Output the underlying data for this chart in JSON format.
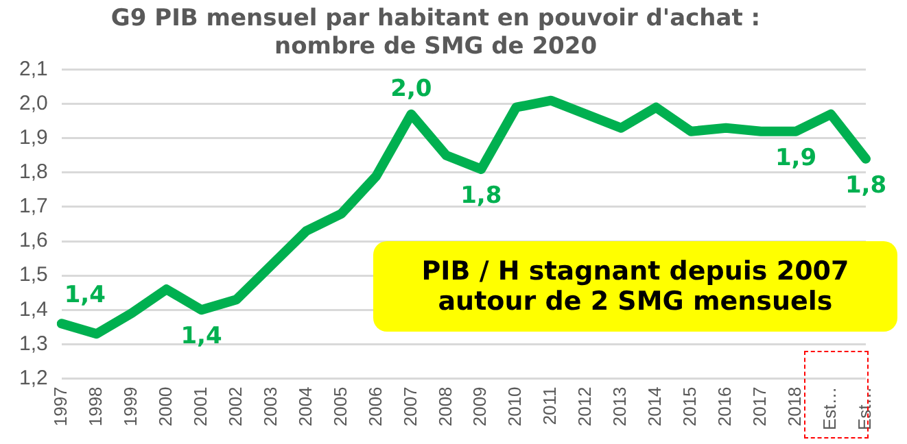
{
  "chart_data": {
    "type": "line",
    "title": "G9 PIB mensuel par habitant en pouvoir d'achat :\nnombre de SMG de 2020",
    "categories": [
      "1997",
      "1998",
      "1999",
      "2000",
      "2001",
      "2002",
      "2003",
      "2004",
      "2005",
      "2006",
      "2007",
      "2008",
      "2009",
      "2010",
      "2011",
      "2012",
      "2013",
      "2014",
      "2015",
      "2016",
      "2017",
      "2018",
      "Est…",
      "Est…"
    ],
    "series": [
      {
        "color": "#00b050",
        "values": [
          1.36,
          1.33,
          1.39,
          1.46,
          1.4,
          1.43,
          1.53,
          1.63,
          1.68,
          1.79,
          1.97,
          1.85,
          1.81,
          1.99,
          2.01,
          1.97,
          1.93,
          1.99,
          1.92,
          1.93,
          1.92,
          1.92,
          1.97,
          1.84
        ],
        "value_labels": [
          "1,4",
          null,
          null,
          null,
          "1,4",
          null,
          null,
          null,
          null,
          null,
          "2,0",
          null,
          "1,8",
          null,
          null,
          null,
          null,
          null,
          null,
          null,
          null,
          "1,9",
          null,
          "1,8"
        ]
      }
    ],
    "ylim": [
      1.2,
      2.1
    ],
    "yticks": [
      {
        "value": 1.2,
        "label": "1,2"
      },
      {
        "value": 1.3,
        "label": "1,3"
      },
      {
        "value": 1.4,
        "label": "1,4"
      },
      {
        "value": 1.5,
        "label": "1,5"
      },
      {
        "value": 1.6,
        "label": "1,6"
      },
      {
        "value": 1.7,
        "label": "1,7"
      },
      {
        "value": 1.8,
        "label": "1,8"
      },
      {
        "value": 1.9,
        "label": "1,9"
      },
      {
        "value": 2.0,
        "label": "2,0"
      },
      {
        "value": 2.1,
        "label": "2,1"
      }
    ],
    "grid": "y",
    "legend": false,
    "marker": "none",
    "line_style": "solid",
    "annotations": [
      "PIB / H stagnant depuis 2007\nautour de 2 SMG mensuels"
    ]
  }
}
